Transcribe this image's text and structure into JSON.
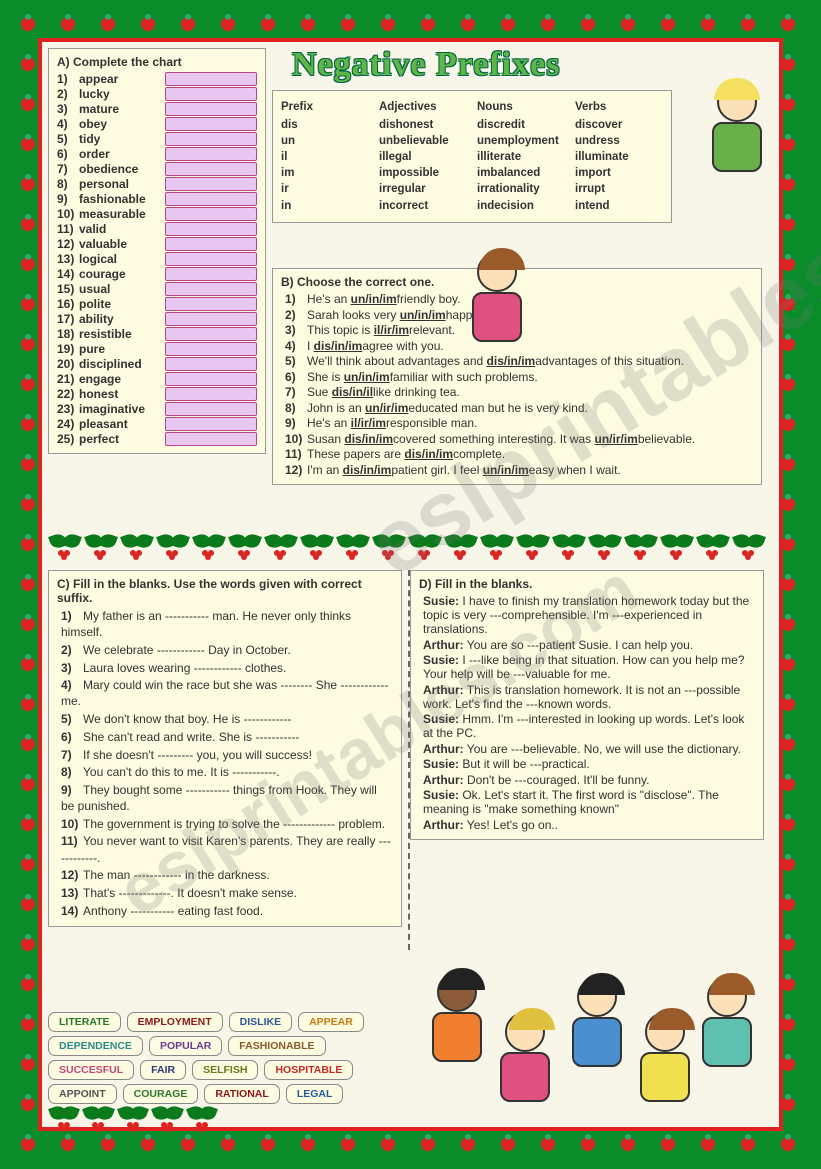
{
  "title": "Negative Prefixes",
  "sectionA": {
    "heading": "A)  Complete the chart",
    "items": [
      "appear",
      "lucky",
      "mature",
      "obey",
      "tidy",
      "order",
      "obedience",
      "personal",
      "fashionable",
      "measurable",
      "valid",
      "valuable",
      "logical",
      "courage",
      "usual",
      "polite",
      "ability",
      "resistible",
      "pure",
      "disciplined",
      "engage",
      "honest",
      "imaginative",
      "pleasant",
      "perfect"
    ]
  },
  "prefixTable": {
    "col1": {
      "head": "Prefix",
      "rows": [
        "dis",
        "un",
        "il",
        "im",
        "ir",
        "in"
      ]
    },
    "col2": {
      "head": "Adjectives",
      "rows": [
        "dishonest",
        "unbelievable",
        "illegal",
        "impossible",
        "irregular",
        "incorrect"
      ]
    },
    "col3": {
      "head": "Nouns",
      "rows": [
        "discredit",
        "unemployment",
        "illiterate",
        "imbalanced",
        "irrationality",
        "indecision"
      ]
    },
    "col4": {
      "head": "Verbs",
      "rows": [
        "discover",
        "undress",
        "illuminate",
        "import",
        "irrupt",
        "intend"
      ]
    }
  },
  "sectionB": {
    "heading": "B)  Choose the correct one.",
    "items": [
      "He's an <u>un/in/im</u>friendly boy.",
      "Sarah looks very <u>un/in/im</u>happy.",
      "This topic is <u>il/ir/im</u>relevant.",
      "I <u>dis/in/im</u>agree with you.",
      "We'll think about advantages and <u>dis/in/im</u>advantages of this situation.",
      "She is <u>un/in/im</u>familiar with such problems.",
      "Sue <u>dis/in/il</u>like drinking tea.",
      "John is an <u>un/ir/im</u>educated man but he is very kind.",
      "He's an <u>il/ir/im</u>responsible man.",
      "Susan <u>dis/in/im</u>covered something interesting. It was <u>un/ir/im</u>believable.",
      "These papers are <u>dis/in/im</u>complete.",
      "I'm an <u>dis/in/im</u>patient girl. I feel <u>un/in/im</u>easy when I wait."
    ]
  },
  "sectionC": {
    "heading": "C)  Fill in the blanks. Use the words given with correct suffix.",
    "items": [
      "My father is an ----------- man. He never only thinks himself.",
      "We celebrate ------------ Day in October.",
      "Laura loves wearing ------------ clothes.",
      "Mary could win the race but she was -------- She ------------ me.",
      "We don't know that boy. He is ------------",
      "She can't read and write. She is -----------",
      "If she doesn't --------- you, you will success!",
      "You can't do this to me. It is -----------.",
      "They bought some ----------- things from Hook. They will be punished.",
      "The government is trying to solve the ------------- problem.",
      "You never want to visit Karen's parents. They are really ------------.",
      "The man ------------ in the darkness.",
      "That's -------------. It doesn't make sense.",
      "Anthony ----------- eating fast food."
    ]
  },
  "sectionD": {
    "heading": "D)  Fill in the blanks.",
    "lines": [
      {
        "sp": "Susie:",
        "text": "I have to finish my translation homework today but the topic is very ---comprehensible. I'm ---experienced in translations."
      },
      {
        "sp": "Arthur:",
        "text": "You are so ---patient Susie. I can help you."
      },
      {
        "sp": "Susie:",
        "text": "I ---like being in that situation. How can you help me? Your help will be ---valuable for me."
      },
      {
        "sp": "Arthur:",
        "text": "This is translation homework. It is not an ---possible work. Let's find the ---known words."
      },
      {
        "sp": "Susie:",
        "text": "Hmm. I'm ---interested in looking up words. Let's look at the PC."
      },
      {
        "sp": "Arthur:",
        "text": "You are ---believable. No, we will use the dictionary."
      },
      {
        "sp": "Susie:",
        "text": "But it will be ---practical."
      },
      {
        "sp": "Arthur:",
        "text": "Don't be ---couraged. It'll be funny."
      },
      {
        "sp": "Susie:",
        "text": "Ok. Let's start it. The first word is \"disclose\". The meaning is \"make something known\""
      },
      {
        "sp": "Arthur:",
        "text": "Yes! Let's go on.."
      }
    ]
  },
  "wordbank": [
    {
      "t": "LITERATE",
      "c": "c-green"
    },
    {
      "t": "EMPLOYMENT",
      "c": "c-darkred"
    },
    {
      "t": "DISLIKE",
      "c": "c-blue"
    },
    {
      "t": "APPEAR",
      "c": "c-orange"
    },
    {
      "t": "DEPENDENCE",
      "c": "c-teal"
    },
    {
      "t": "POPULAR",
      "c": "c-purple"
    },
    {
      "t": "FASHIONABLE",
      "c": "c-brown"
    },
    {
      "t": "SUCCESFUL",
      "c": "c-pink"
    },
    {
      "t": "FAIR",
      "c": "c-navy"
    },
    {
      "t": "SELFISH",
      "c": "c-olive"
    },
    {
      "t": "HOSPITABLE",
      "c": "c-red"
    },
    {
      "t": "APPOINT",
      "c": "c-grey"
    },
    {
      "t": "COURAGE",
      "c": "c-green"
    },
    {
      "t": "RATIONAL",
      "c": "c-darkred"
    },
    {
      "t": "LEGAL",
      "c": "c-blue"
    }
  ],
  "watermark": "eslprintables.com"
}
